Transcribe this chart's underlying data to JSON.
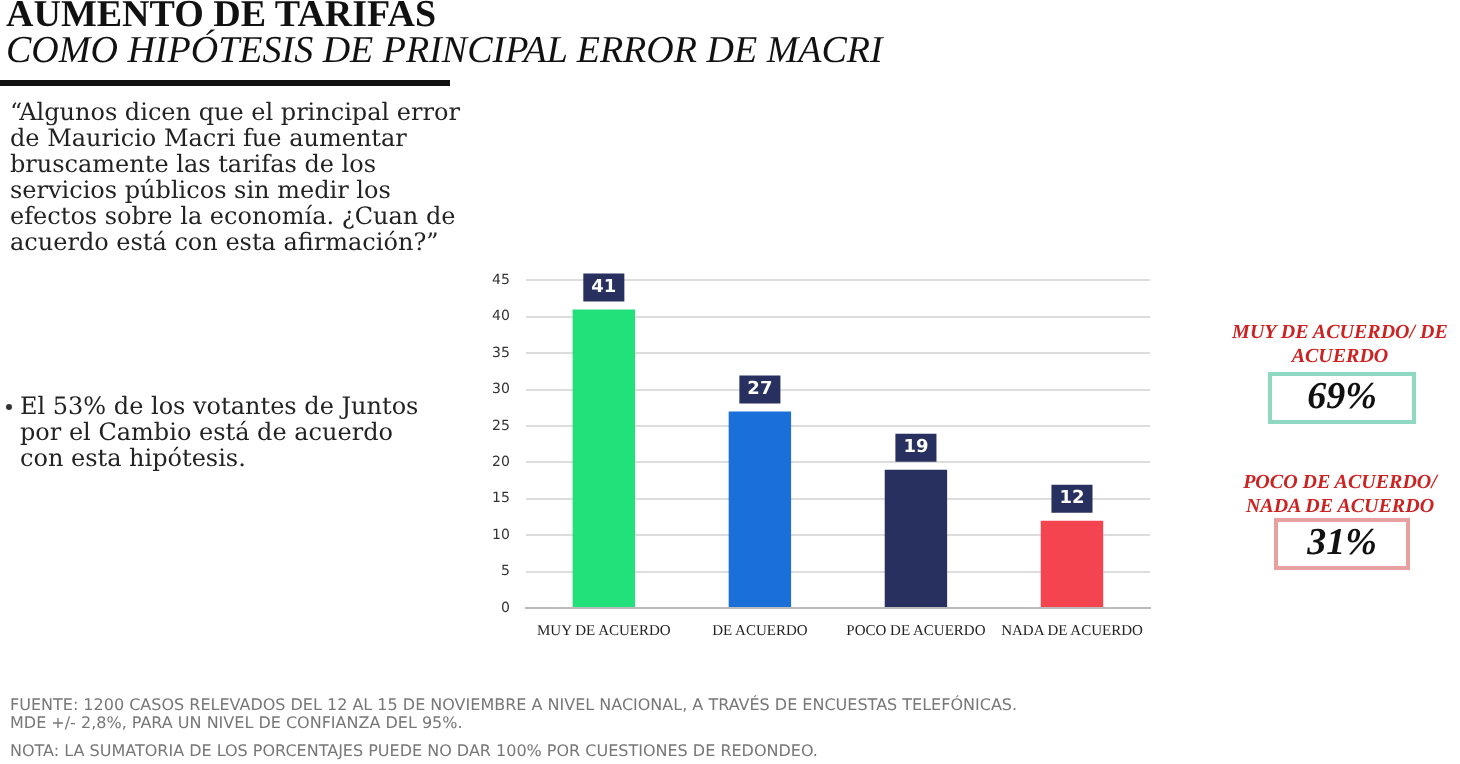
{
  "chart_data": {
    "type": "bar",
    "title": "AUMENTO DE TARIFAS",
    "subtitle": "COMO HIPÓTESIS DE PRINCIPAL ERROR DE MACRI",
    "categories": [
      "MUY DE ACUERDO",
      "DE ACUERDO",
      "POCO DE ACUERDO",
      "NADA DE ACUERDO"
    ],
    "values": [
      41,
      27,
      19,
      12
    ],
    "colors": [
      "#22e07a",
      "#1a6fd8",
      "#27305e",
      "#f4444f"
    ],
    "ylim": [
      0,
      45
    ],
    "yticks": [
      0,
      5,
      10,
      15,
      20,
      25,
      30,
      35,
      40,
      45
    ],
    "grid": "y",
    "data_labels": true,
    "legend": false,
    "annotations": [
      "“Algunos dicen que el principal error de Mauricio Macri fue aumentar bruscamente las tarifas de los servicios públicos sin medir los efectos sobre la economía. ¿Cuan de acuerdo está con esta afirmación?”",
      "El 53% de los votantes de Juntos por el Cambio está de acuerdo con esta hipótesis.",
      "MUY DE ACUERDO/ DE ACUERDO",
      "69%",
      "POCO DE ACUERDO/ NADA DE ACUERDO",
      "31%",
      "FUENTE: 1200 CASOS RELEVADOS DEL 12 AL 15 DE NOVIEMBRE A NIVEL NACIONAL, A TRAVÉS DE ENCUESTAS TELEFÓNICAS. MDE +/- 2,8%, PARA UN NIVEL DE CONFIANZA DEL 95%.",
      "NOTA: LA SUMATORIA DE LOS PORCENTAJES PUEDE NO DAR 100% POR CUESTIONES DE REDONDEO."
    ]
  }
}
